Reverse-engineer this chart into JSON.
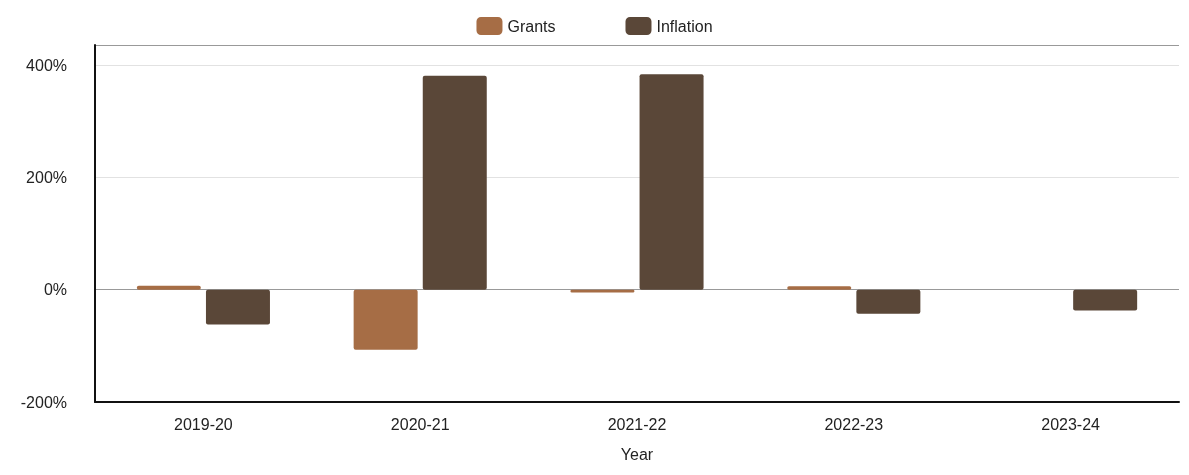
{
  "chart_data": {
    "type": "bar",
    "xlabel": "Year",
    "categories": [
      "2019-20",
      "2020-21",
      "2021-22",
      "2022-23",
      "2023-24"
    ],
    "series": [
      {
        "name": "Grants",
        "color": "#a66d45",
        "values": [
          7,
          -107,
          -5,
          6,
          null
        ]
      },
      {
        "name": "Inflation",
        "color": "#5a4738",
        "values": [
          -62,
          381,
          384,
          -43,
          -37
        ]
      }
    ],
    "ylim": [
      -200,
      436
    ],
    "yticks": [
      {
        "value": -200,
        "label": "-200%"
      },
      {
        "value": 0,
        "label": "0%"
      },
      {
        "value": 200,
        "label": "200%"
      },
      {
        "value": 400,
        "label": "400%"
      }
    ],
    "grid": "y",
    "legend": "top"
  }
}
